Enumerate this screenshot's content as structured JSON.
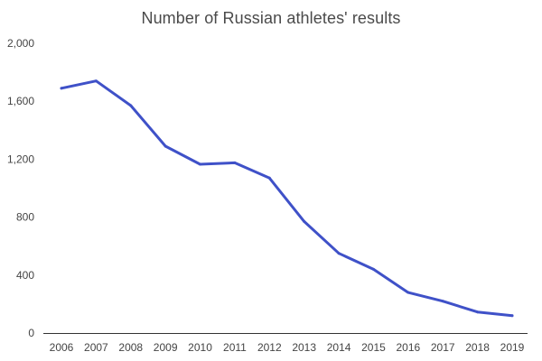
{
  "chart_data": {
    "type": "line",
    "title": "Number of Russian athletes' results",
    "xlabel": "",
    "ylabel": "",
    "x": [
      "2006",
      "2007",
      "2008",
      "2009",
      "2010",
      "2011",
      "2012",
      "2013",
      "2014",
      "2015",
      "2016",
      "2017",
      "2018",
      "2019"
    ],
    "series": [
      {
        "values": [
          1690,
          1740,
          1570,
          1290,
          1165,
          1175,
          1070,
          770,
          550,
          440,
          280,
          220,
          145,
          120
        ]
      }
    ],
    "ylim": [
      0,
      2000
    ],
    "yticks": [
      0,
      400,
      800,
      1200,
      1600,
      2000
    ],
    "ytick_labels": [
      "0",
      "400",
      "800",
      "1,200",
      "1,600",
      "2,000"
    ],
    "grid": false,
    "legend": "none",
    "line_color": "#3f51c8"
  }
}
